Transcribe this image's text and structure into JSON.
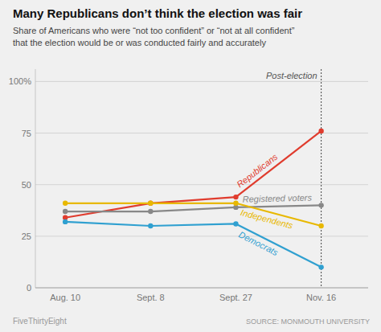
{
  "chart_data": {
    "type": "line",
    "title": "Many Republicans don’t think the election was fair",
    "subtitle": [
      "Share of Americans who were “not too confident” or “not at all confident”",
      "that the election would be or was conducted fairly and accurately"
    ],
    "categories": [
      "Aug. 10",
      "Sept. 8",
      "Sept. 27",
      "Nov. 16"
    ],
    "series": [
      {
        "name": "Republicans",
        "color": "#e03c2e",
        "values": [
          34,
          41,
          44,
          76
        ]
      },
      {
        "name": "Registered voters",
        "color": "#888888",
        "values": [
          37,
          37,
          39,
          40
        ]
      },
      {
        "name": "Independents",
        "color": "#e8b800",
        "values": [
          41,
          41,
          41,
          30
        ]
      },
      {
        "name": "Democrats",
        "color": "#30a0d0",
        "values": [
          32,
          30,
          31,
          10
        ]
      }
    ],
    "marker": "circle",
    "ylim": [
      0,
      106
    ],
    "yticks": [
      0,
      25,
      50,
      75,
      {
        "value": 100,
        "label": "100%"
      }
    ],
    "grid": true,
    "annotations": [
      {
        "text": "Post-election",
        "x": "Nov. 16"
      }
    ],
    "footer": "FiveThirtyEight",
    "source": "SOURCE: MONMOUTH UNIVERSITY"
  }
}
